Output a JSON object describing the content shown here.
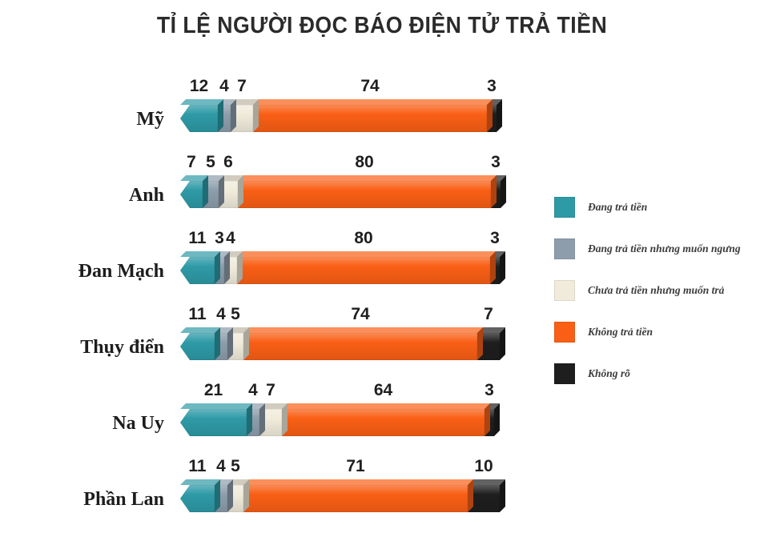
{
  "chart_data": {
    "type": "bar",
    "variant": "stacked-horizontal-3d",
    "title": "TỈ LỆ NGƯỜI ĐỌC BÁO ĐIỆN TỬ TRẢ TIỀN",
    "categories": [
      "Mỹ",
      "Anh",
      "Đan Mạch",
      "Thụy điển",
      "Na Uy",
      "Phần Lan"
    ],
    "series": [
      {
        "name": "Đang trả tiền",
        "color": "#2E9AA6",
        "values": [
          12,
          7,
          11,
          11,
          21,
          11
        ]
      },
      {
        "name": "Đang trả tiền nhưng muốn ngưng",
        "color": "#8D9DAB",
        "values": [
          4,
          5,
          3,
          4,
          4,
          4
        ]
      },
      {
        "name": "Chưa trả tiền nhưng muốn trả",
        "color": "#F0EBDB",
        "values": [
          7,
          6,
          4,
          5,
          7,
          5
        ]
      },
      {
        "name": "Không trả tiền",
        "color": "#F95F15",
        "values": [
          74,
          80,
          80,
          74,
          64,
          71
        ]
      },
      {
        "name": "Không rõ",
        "color": "#1E1E1E",
        "values": [
          3,
          3,
          3,
          7,
          3,
          10
        ]
      }
    ],
    "value_labels": "above-segments",
    "axis_range": [
      0,
      100
    ],
    "unit": "percent",
    "legend_position": "right",
    "grid": false
  }
}
